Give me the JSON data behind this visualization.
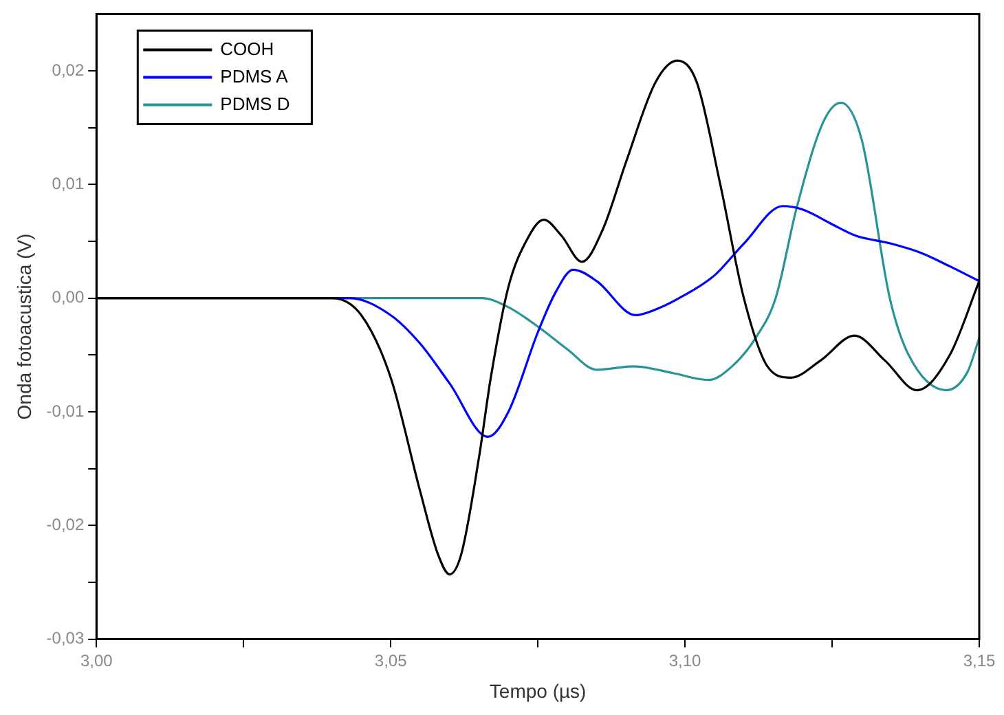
{
  "chart_data": {
    "type": "line",
    "xlabel": "Tempo (µs)",
    "ylabel": "Onda fotoacustica (V)",
    "xlim": [
      3.0,
      3.15
    ],
    "xticks": [
      {
        "value": 3.0,
        "label": "3,00"
      },
      {
        "value": 3.025,
        "label": null
      },
      {
        "value": 3.05,
        "label": "3,05"
      },
      {
        "value": 3.075,
        "label": null
      },
      {
        "value": 3.1,
        "label": "3,10"
      },
      {
        "value": 3.125,
        "label": null
      },
      {
        "value": 3.15,
        "label": "3,15"
      }
    ],
    "ylim": [
      -0.03,
      0.025
    ],
    "yticks": [
      {
        "value": -0.03,
        "label": "-0,03"
      },
      {
        "value": -0.025,
        "label": null
      },
      {
        "value": -0.02,
        "label": "-0,02"
      },
      {
        "value": -0.015,
        "label": null
      },
      {
        "value": -0.01,
        "label": "-0,01"
      },
      {
        "value": -0.005,
        "label": null
      },
      {
        "value": 0,
        "label": "0,00"
      },
      {
        "value": 0.005,
        "label": null
      },
      {
        "value": 0.01,
        "label": "0,01"
      },
      {
        "value": 0.015,
        "label": null
      },
      {
        "value": 0.02,
        "label": "0,02"
      }
    ],
    "grid": false,
    "legend": "top left",
    "marker": "none",
    "line_style": "solid",
    "series": [
      {
        "name": "COOH",
        "color": "#000000",
        "x": [
          3.0,
          3.04,
          3.045,
          3.05,
          3.055,
          3.058,
          3.06,
          3.062,
          3.065,
          3.067,
          3.07,
          3.073,
          3.076,
          3.079,
          3.0825,
          3.086,
          3.09,
          3.095,
          3.0987,
          3.102,
          3.106,
          3.11,
          3.114,
          3.118,
          3.123,
          3.1288,
          3.134,
          3.1394,
          3.145,
          3.15
        ],
        "values": [
          0,
          0,
          -0.0015,
          -0.007,
          -0.017,
          -0.0225,
          -0.0243,
          -0.0225,
          -0.014,
          -0.007,
          0.001,
          0.005,
          0.0069,
          0.0055,
          0.0032,
          0.006,
          0.012,
          0.019,
          0.0209,
          0.019,
          0.01,
          0.0,
          -0.006,
          -0.007,
          -0.0055,
          -0.0033,
          -0.0055,
          -0.0081,
          -0.005,
          0.0015
        ]
      },
      {
        "name": "PDMS A",
        "color": "#0000ff",
        "x": [
          3.0,
          3.043,
          3.05,
          3.055,
          3.06,
          3.0665,
          3.07,
          3.075,
          3.078,
          3.081,
          3.085,
          3.0916,
          3.095,
          3.099,
          3.105,
          3.11,
          3.1166,
          3.12,
          3.125,
          3.129,
          3.135,
          3.14,
          3.145,
          3.15
        ],
        "values": [
          0,
          0,
          -0.0015,
          -0.004,
          -0.0075,
          -0.0122,
          -0.01,
          -0.003,
          0.0005,
          0.0025,
          0.0015,
          -0.0015,
          -0.001,
          0.0,
          0.002,
          0.0048,
          0.0081,
          0.0078,
          0.0065,
          0.0055,
          0.0048,
          0.004,
          0.0028,
          0.0015
        ]
      },
      {
        "name": "PDMS D",
        "color": "#2a9494",
        "x": [
          3.0,
          3.0655,
          3.07,
          3.075,
          3.08,
          3.085,
          3.0913,
          3.098,
          3.104,
          3.108,
          3.112,
          3.1154,
          3.119,
          3.1235,
          3.1265,
          3.13,
          3.1348,
          3.138,
          3.1444,
          3.148,
          3.15
        ],
        "values": [
          0,
          0,
          -0.0008,
          -0.0025,
          -0.0045,
          -0.0063,
          -0.006,
          -0.0066,
          -0.0072,
          -0.006,
          -0.0035,
          0.0,
          0.008,
          0.0155,
          0.0172,
          0.014,
          0.0,
          -0.005,
          -0.0081,
          -0.0065,
          -0.0035
        ]
      }
    ]
  }
}
